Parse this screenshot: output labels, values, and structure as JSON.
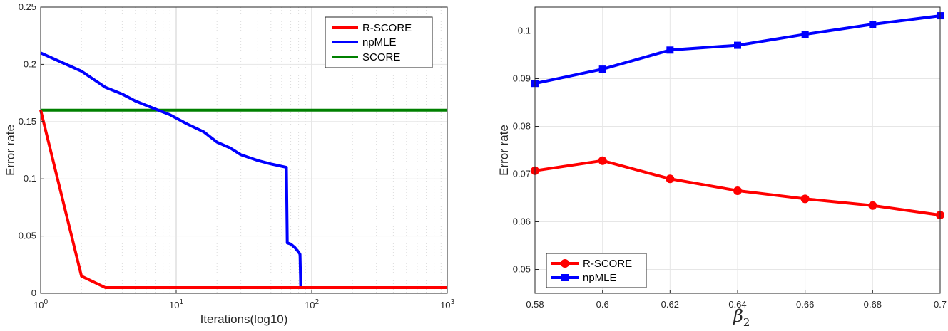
{
  "colors": {
    "r_score": "#ff0000",
    "npmle": "#0000ff",
    "score": "#008000"
  },
  "chart_data": [
    {
      "type": "line",
      "xscale": "log",
      "xlim": [
        1,
        1000
      ],
      "ylim": [
        0,
        0.25
      ],
      "xlabel": "Iterations(log10)",
      "ylabel": "Error rate",
      "xtick_labels": [
        {
          "base": "10",
          "exp": "0"
        },
        {
          "base": "10",
          "exp": "1"
        },
        {
          "base": "10",
          "exp": "2"
        },
        {
          "base": "10",
          "exp": "3"
        }
      ],
      "ytick_labels": [
        "0",
        "0.05",
        "0.1",
        "0.15",
        "0.2",
        "0.25"
      ],
      "grid": "minor-x dotted, major y",
      "legend_position": "top-right",
      "series": [
        {
          "name": "R-SCORE",
          "color": "#ff0000",
          "x": [
            1,
            2,
            3,
            10,
            30,
            85,
            1000
          ],
          "y": [
            0.16,
            0.015,
            0.005,
            0.005,
            0.005,
            0.005,
            0.005
          ]
        },
        {
          "name": "npMLE",
          "color": "#0000ff",
          "x": [
            1,
            2,
            3,
            4,
            5,
            7,
            9,
            12,
            16,
            20,
            25,
            30,
            40,
            50,
            65,
            66,
            70,
            75,
            80,
            82,
            83,
            100,
            300,
            1000
          ],
          "y": [
            0.21,
            0.194,
            0.18,
            0.174,
            0.168,
            0.161,
            0.156,
            0.148,
            0.141,
            0.132,
            0.127,
            0.121,
            0.116,
            0.113,
            0.11,
            0.044,
            0.043,
            0.04,
            0.036,
            0.034,
            0.005,
            0.005,
            0.005,
            0.005
          ]
        },
        {
          "name": "SCORE",
          "color": "#008000",
          "x": [
            1,
            1000
          ],
          "y": [
            0.16,
            0.16
          ]
        }
      ]
    },
    {
      "type": "line",
      "xlim": [
        0.58,
        0.7
      ],
      "ylim": [
        0.045,
        0.105
      ],
      "xlabel": {
        "symbol": "β",
        "subscript": "2"
      },
      "ylabel": "Error rate",
      "xtick_labels": [
        "0.58",
        "0.6",
        "0.62",
        "0.64",
        "0.66",
        "0.68",
        "0.7"
      ],
      "ytick_labels": [
        "0.05",
        "0.06",
        "0.07",
        "0.08",
        "0.09",
        "0.1"
      ],
      "grid": "major x and y",
      "legend_position": "bottom-left",
      "series": [
        {
          "name": "R-SCORE",
          "color": "#ff0000",
          "marker": "circle",
          "x": [
            0.58,
            0.6,
            0.62,
            0.64,
            0.66,
            0.68,
            0.7
          ],
          "y": [
            0.0707,
            0.0728,
            0.069,
            0.0665,
            0.0648,
            0.0634,
            0.0614
          ]
        },
        {
          "name": "npMLE",
          "color": "#0000ff",
          "marker": "square",
          "x": [
            0.58,
            0.6,
            0.62,
            0.64,
            0.66,
            0.68,
            0.7
          ],
          "y": [
            0.089,
            0.092,
            0.096,
            0.097,
            0.0993,
            0.1014,
            0.1032
          ]
        }
      ]
    }
  ]
}
